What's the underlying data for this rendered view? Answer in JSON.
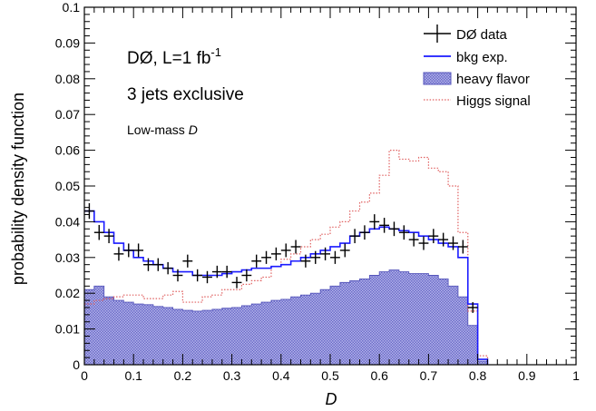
{
  "chart_data": {
    "type": "histogram",
    "xlabel": "D",
    "ylabel": "probability  density  function",
    "xlim": [
      0,
      1
    ],
    "ylim": [
      0,
      0.1
    ],
    "x_ticks": [
      "0",
      "0.1",
      "0.2",
      "0.3",
      "0.4",
      "0.5",
      "0.6",
      "0.7",
      "0.8",
      "0.9",
      "1"
    ],
    "y_ticks": [
      "0",
      "0.01",
      "0.02",
      "0.03",
      "0.04",
      "0.05",
      "0.06",
      "0.07",
      "0.08",
      "0.09",
      "0.1"
    ],
    "bin_width": 0.02,
    "annotations": {
      "experiment_main": "DØ, L=1 fb",
      "experiment_sup": "-1",
      "selection": "3 jets exclusive",
      "region_prefix": "Low-mass ",
      "region_var": "D"
    },
    "legend": {
      "position": "top-right",
      "entries": [
        {
          "key": "data",
          "label": "DØ data"
        },
        {
          "key": "bkg",
          "label": "bkg exp."
        },
        {
          "key": "hf",
          "label": "heavy flavor"
        },
        {
          "key": "higgs",
          "label": "Higgs signal"
        }
      ]
    },
    "colors": {
      "bkg": "#1a1aff",
      "hf_fill": "#8c8cd9",
      "hf_line": "#5555bb",
      "higgs": "#e06060",
      "data": "#000000"
    },
    "series": [
      {
        "key": "bkg",
        "style": "step",
        "x_edges": [
          0.0,
          0.02,
          0.04,
          0.06,
          0.08,
          0.1,
          0.12,
          0.14,
          0.16,
          0.18,
          0.2,
          0.22,
          0.24,
          0.26,
          0.28,
          0.3,
          0.32,
          0.34,
          0.36,
          0.38,
          0.4,
          0.42,
          0.44,
          0.46,
          0.48,
          0.5,
          0.52,
          0.54,
          0.56,
          0.58,
          0.6,
          0.62,
          0.64,
          0.66,
          0.68,
          0.7,
          0.72,
          0.74,
          0.76,
          0.78,
          0.8,
          0.82
        ],
        "values": [
          0.043,
          0.04,
          0.037,
          0.034,
          0.032,
          0.03,
          0.029,
          0.028,
          0.027,
          0.026,
          0.026,
          0.025,
          0.025,
          0.025,
          0.0255,
          0.026,
          0.0265,
          0.027,
          0.027,
          0.0275,
          0.028,
          0.029,
          0.03,
          0.031,
          0.032,
          0.033,
          0.034,
          0.036,
          0.037,
          0.038,
          0.0385,
          0.038,
          0.0375,
          0.037,
          0.036,
          0.035,
          0.034,
          0.033,
          0.03,
          0.017,
          0.0015
        ]
      },
      {
        "key": "hf",
        "style": "filled-step",
        "x_edges": [
          0.0,
          0.02,
          0.04,
          0.06,
          0.08,
          0.1,
          0.12,
          0.14,
          0.16,
          0.18,
          0.2,
          0.22,
          0.24,
          0.26,
          0.28,
          0.3,
          0.32,
          0.34,
          0.36,
          0.38,
          0.4,
          0.42,
          0.44,
          0.46,
          0.48,
          0.5,
          0.52,
          0.54,
          0.56,
          0.58,
          0.6,
          0.62,
          0.64,
          0.66,
          0.68,
          0.7,
          0.72,
          0.74,
          0.76,
          0.78,
          0.8,
          0.82
        ],
        "values": [
          0.021,
          0.022,
          0.019,
          0.018,
          0.0175,
          0.017,
          0.0168,
          0.0163,
          0.016,
          0.0155,
          0.0152,
          0.015,
          0.0152,
          0.0155,
          0.0158,
          0.016,
          0.0165,
          0.017,
          0.0175,
          0.018,
          0.0183,
          0.019,
          0.0195,
          0.02,
          0.021,
          0.022,
          0.023,
          0.0235,
          0.024,
          0.025,
          0.026,
          0.0265,
          0.026,
          0.0255,
          0.0255,
          0.025,
          0.024,
          0.022,
          0.019,
          0.011,
          0.001
        ]
      },
      {
        "key": "higgs",
        "style": "dotted-step",
        "x_edges": [
          0.0,
          0.02,
          0.04,
          0.06,
          0.08,
          0.1,
          0.12,
          0.14,
          0.16,
          0.18,
          0.2,
          0.22,
          0.24,
          0.26,
          0.28,
          0.3,
          0.32,
          0.34,
          0.36,
          0.38,
          0.4,
          0.42,
          0.44,
          0.46,
          0.48,
          0.5,
          0.52,
          0.54,
          0.56,
          0.58,
          0.6,
          0.62,
          0.64,
          0.66,
          0.68,
          0.7,
          0.72,
          0.74,
          0.76,
          0.78,
          0.8,
          0.82
        ],
        "values": [
          0.017,
          0.018,
          0.0185,
          0.019,
          0.0195,
          0.0195,
          0.0185,
          0.0185,
          0.0195,
          0.0205,
          0.0175,
          0.0175,
          0.019,
          0.0195,
          0.021,
          0.021,
          0.0225,
          0.0235,
          0.0245,
          0.0275,
          0.0295,
          0.031,
          0.033,
          0.035,
          0.0365,
          0.0385,
          0.04,
          0.043,
          0.0455,
          0.048,
          0.053,
          0.06,
          0.0575,
          0.057,
          0.058,
          0.055,
          0.054,
          0.05,
          0.037,
          0.015,
          0.0025
        ]
      },
      {
        "key": "data",
        "style": "points",
        "x": [
          0.01,
          0.03,
          0.05,
          0.07,
          0.09,
          0.11,
          0.13,
          0.15,
          0.17,
          0.19,
          0.21,
          0.23,
          0.25,
          0.27,
          0.29,
          0.31,
          0.33,
          0.35,
          0.37,
          0.39,
          0.41,
          0.43,
          0.45,
          0.47,
          0.49,
          0.51,
          0.53,
          0.55,
          0.57,
          0.59,
          0.61,
          0.63,
          0.65,
          0.67,
          0.69,
          0.71,
          0.73,
          0.75,
          0.77,
          0.79
        ],
        "y": [
          0.043,
          0.037,
          0.036,
          0.031,
          0.032,
          0.032,
          0.028,
          0.028,
          0.027,
          0.025,
          0.029,
          0.025,
          0.0245,
          0.026,
          0.026,
          0.023,
          0.025,
          0.029,
          0.03,
          0.031,
          0.032,
          0.033,
          0.029,
          0.03,
          0.031,
          0.03,
          0.032,
          0.036,
          0.037,
          0.04,
          0.039,
          0.038,
          0.037,
          0.035,
          0.034,
          0.036,
          0.035,
          0.034,
          0.033,
          0.016
        ],
        "yerr": [
          0.0022,
          0.0021,
          0.002,
          0.0019,
          0.0019,
          0.0019,
          0.0018,
          0.0018,
          0.0017,
          0.0017,
          0.0018,
          0.0017,
          0.0017,
          0.0017,
          0.0017,
          0.0016,
          0.0017,
          0.0018,
          0.0018,
          0.0018,
          0.0019,
          0.0019,
          0.0018,
          0.0018,
          0.0018,
          0.0018,
          0.0019,
          0.002,
          0.002,
          0.0021,
          0.0021,
          0.002,
          0.002,
          0.0019,
          0.0019,
          0.002,
          0.0019,
          0.0019,
          0.0019,
          0.0015
        ]
      }
    ]
  }
}
